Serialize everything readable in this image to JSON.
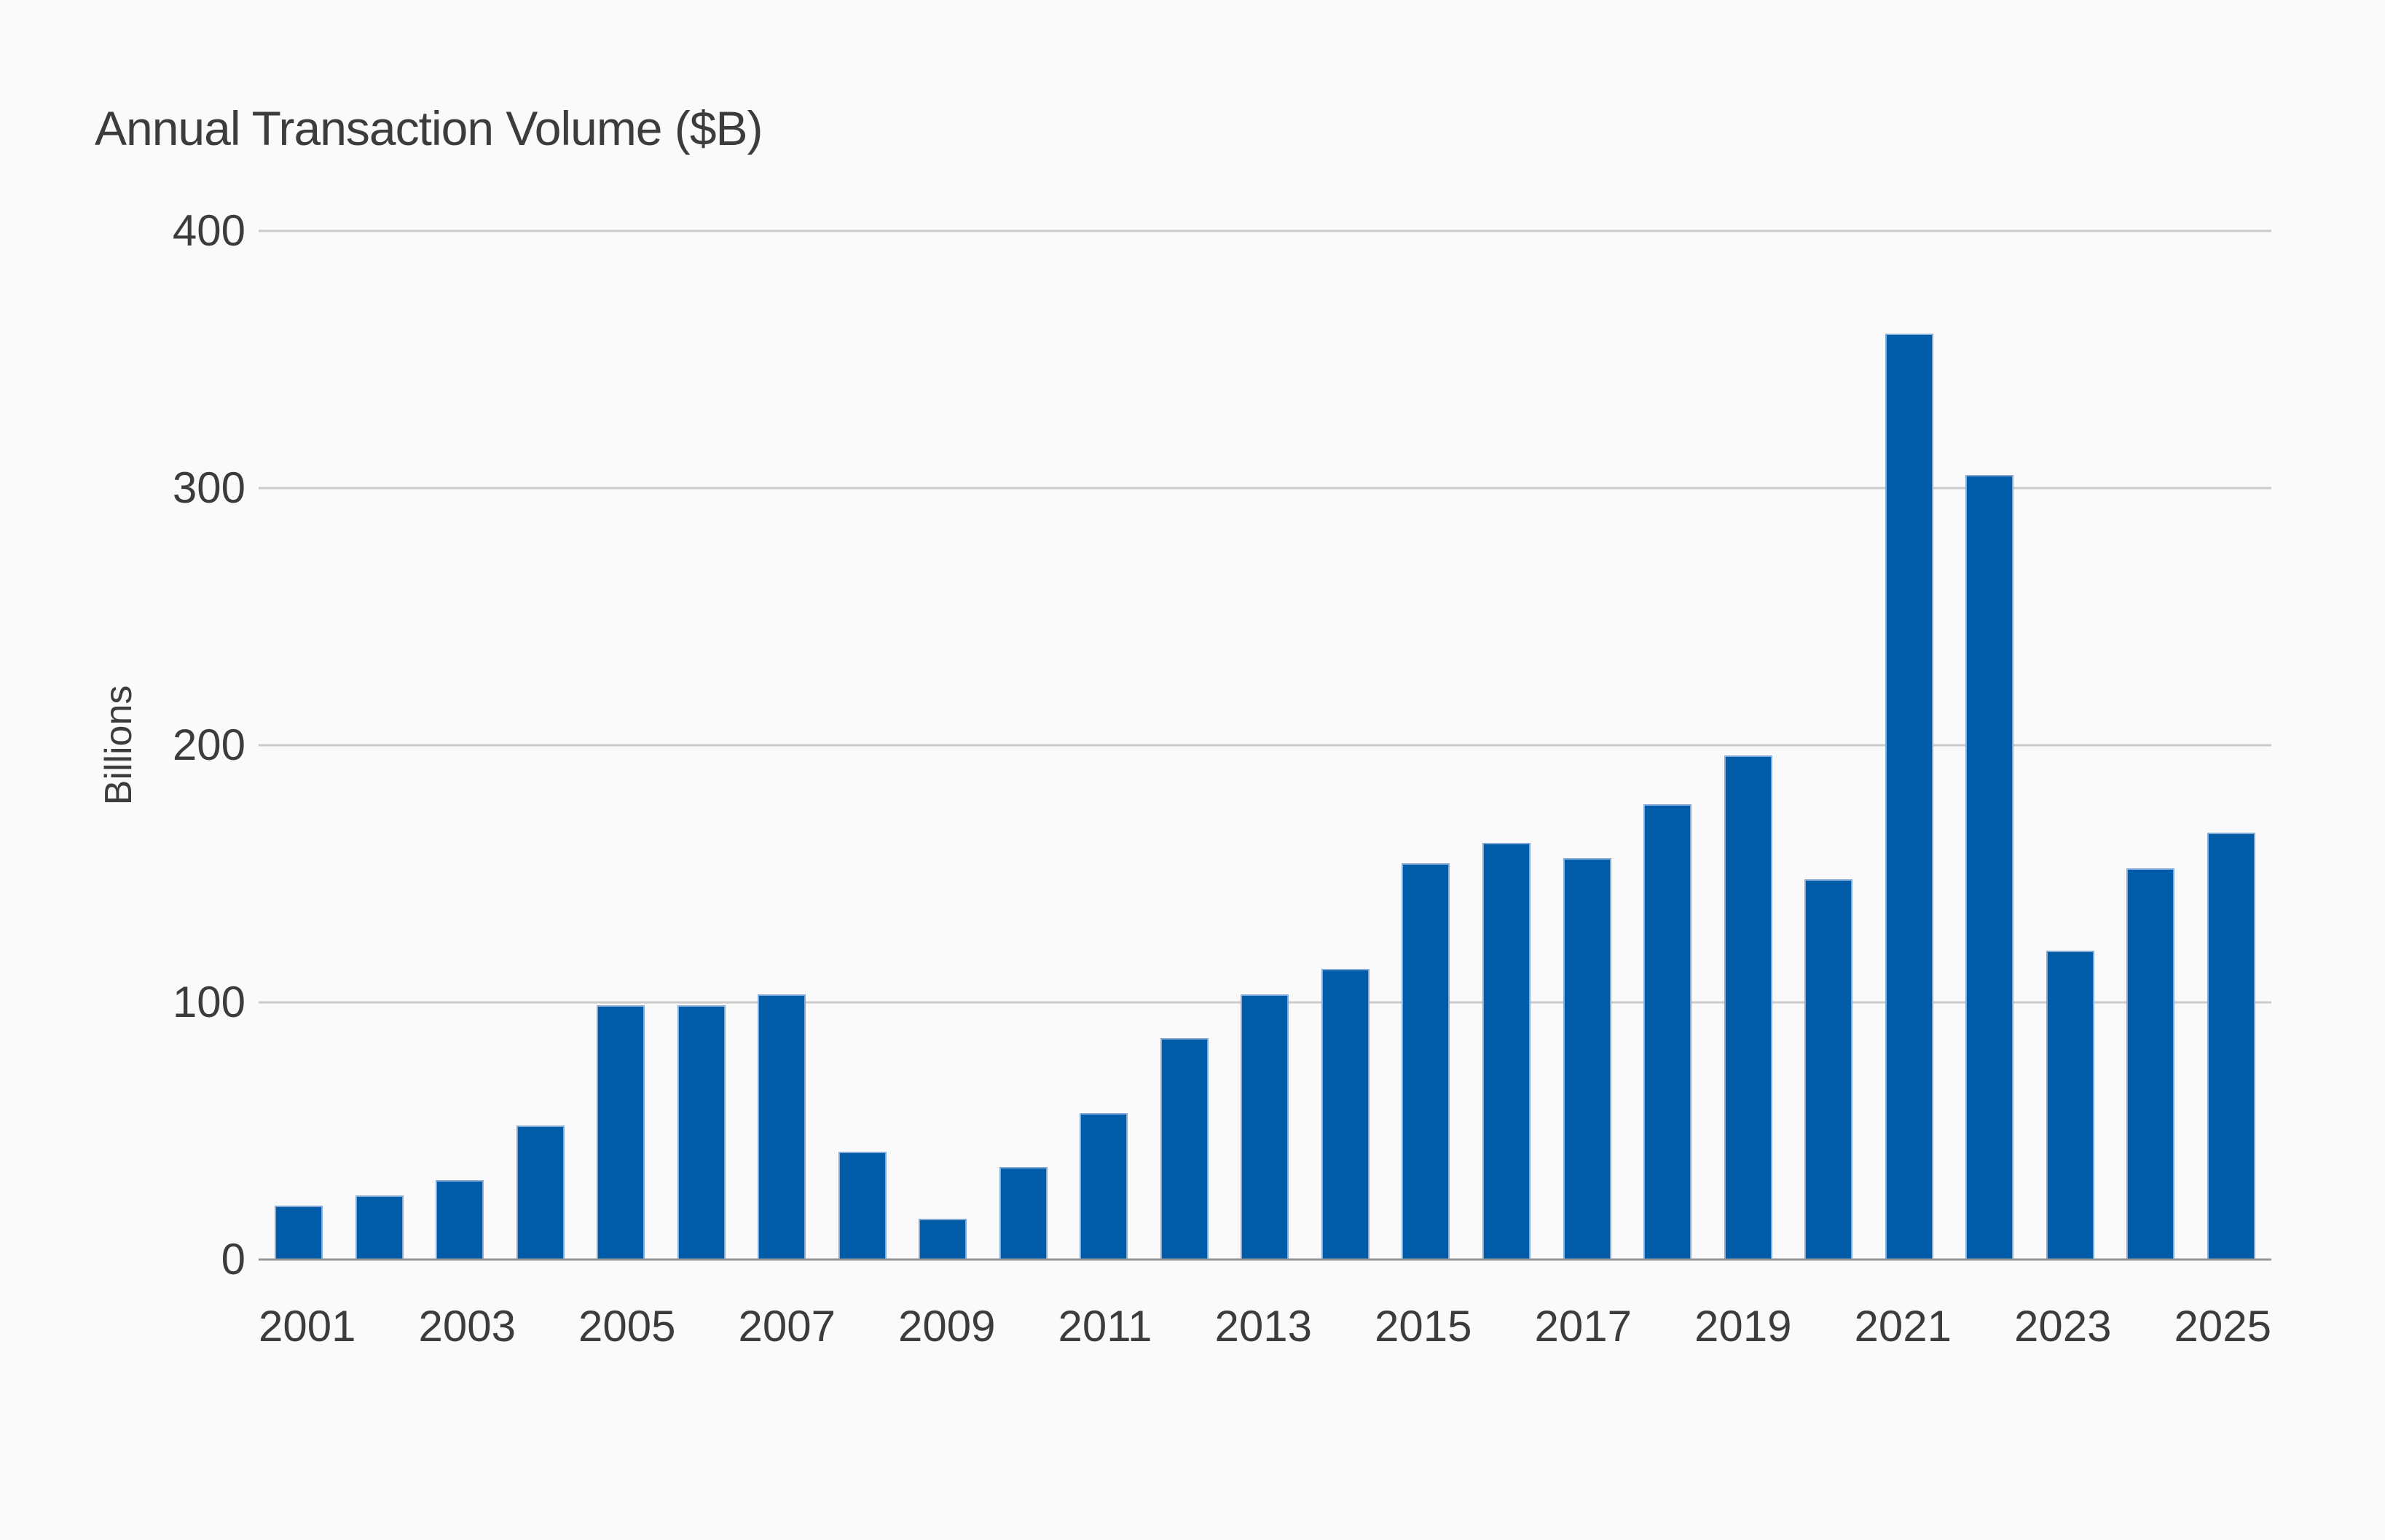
{
  "chart_data": {
    "type": "bar",
    "title": "Annual Transaction Volume ($B)",
    "ylabel": "Billions",
    "xlabel": "",
    "categories": [
      2001,
      2002,
      2003,
      2004,
      2005,
      2006,
      2007,
      2008,
      2009,
      2010,
      2011,
      2012,
      2013,
      2014,
      2015,
      2016,
      2017,
      2018,
      2019,
      2020,
      2021,
      2022,
      2023,
      2024,
      2025
    ],
    "values": [
      21,
      25,
      31,
      52,
      99,
      99,
      103,
      42,
      16,
      36,
      57,
      86,
      103,
      113,
      154,
      162,
      156,
      177,
      196,
      148,
      360,
      305,
      120,
      152,
      166
    ],
    "ylim": [
      0,
      400
    ],
    "yticks": [
      0,
      100,
      200,
      300,
      400
    ],
    "xtick_labels": [
      "2001",
      "2003",
      "2005",
      "2007",
      "2009",
      "2011",
      "2013",
      "2015",
      "2017",
      "2019",
      "2021",
      "2023",
      "2025"
    ],
    "grid": "horizontal",
    "legend": "none",
    "colors": {
      "background": "#FAFAFA",
      "bar_fill": "#005CA9",
      "bar_edge": "#86ABD6",
      "gridline": "#CBCBCB",
      "axis_line": "#969696",
      "text": "#3C3C3C"
    }
  }
}
